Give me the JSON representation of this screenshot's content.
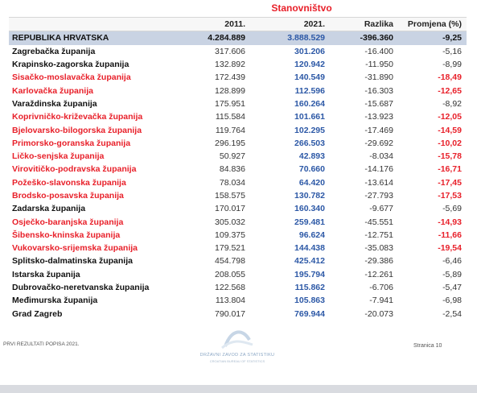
{
  "title": "Stanovništvo",
  "headers": {
    "y2011": "2011.",
    "y2021": "2021.",
    "diff": "Razlika",
    "pct": "Promjena (%)"
  },
  "total": {
    "name": "REPUBLIKA HRVATSKA",
    "y2011": "4.284.889",
    "y2021": "3.888.529",
    "diff": "-396.360",
    "pct": "-9,25"
  },
  "rows": [
    {
      "name": "Zagrebačka županija",
      "y2011": "317.606",
      "y2021": "301.206",
      "diff": "-16.400",
      "pct": "-5,16",
      "highlight": false
    },
    {
      "name": "Krapinsko-zagorska županija",
      "y2011": "132.892",
      "y2021": "120.942",
      "diff": "-11.950",
      "pct": "-8,99",
      "highlight": false
    },
    {
      "name": "Sisačko-moslavačka županija",
      "y2011": "172.439",
      "y2021": "140.549",
      "diff": "-31.890",
      "pct": "-18,49",
      "highlight": true
    },
    {
      "name": "Karlovačka županija",
      "y2011": "128.899",
      "y2021": "112.596",
      "diff": "-16.303",
      "pct": "-12,65",
      "highlight": true
    },
    {
      "name": "Varaždinska županija",
      "y2011": "175.951",
      "y2021": "160.264",
      "diff": "-15.687",
      "pct": "-8,92",
      "highlight": false
    },
    {
      "name": "Koprivničko-križevačka županija",
      "y2011": "115.584",
      "y2021": "101.661",
      "diff": "-13.923",
      "pct": "-12,05",
      "highlight": true
    },
    {
      "name": "Bjelovarsko-bilogorska županija",
      "y2011": "119.764",
      "y2021": "102.295",
      "diff": "-17.469",
      "pct": "-14,59",
      "highlight": true
    },
    {
      "name": "Primorsko-goranska županija",
      "y2011": "296.195",
      "y2021": "266.503",
      "diff": "-29.692",
      "pct": "-10,02",
      "highlight": true
    },
    {
      "name": "Ličko-senjska županija",
      "y2011": "50.927",
      "y2021": "42.893",
      "diff": "-8.034",
      "pct": "-15,78",
      "highlight": true
    },
    {
      "name": "Virovitičko-podravska županija",
      "y2011": "84.836",
      "y2021": "70.660",
      "diff": "-14.176",
      "pct": "-16,71",
      "highlight": true
    },
    {
      "name": "Požeško-slavonska županija",
      "y2011": "78.034",
      "y2021": "64.420",
      "diff": "-13.614",
      "pct": "-17,45",
      "highlight": true
    },
    {
      "name": "Brodsko-posavska županija",
      "y2011": "158.575",
      "y2021": "130.782",
      "diff": "-27.793",
      "pct": "-17,53",
      "highlight": true
    },
    {
      "name": "Zadarska županija",
      "y2011": "170.017",
      "y2021": "160.340",
      "diff": "-9.677",
      "pct": "-5,69",
      "highlight": false
    },
    {
      "name": "Osječko-baranjska županija",
      "y2011": "305.032",
      "y2021": "259.481",
      "diff": "-45.551",
      "pct": "-14,93",
      "highlight": true
    },
    {
      "name": "Šibensko-kninska županija",
      "y2011": "109.375",
      "y2021": "96.624",
      "diff": "-12.751",
      "pct": "-11,66",
      "highlight": true
    },
    {
      "name": "Vukovarsko-srijemska županija",
      "y2011": "179.521",
      "y2021": "144.438",
      "diff": "-35.083",
      "pct": "-19,54",
      "highlight": true
    },
    {
      "name": "Splitsko-dalmatinska županija",
      "y2011": "454.798",
      "y2021": "425.412",
      "diff": "-29.386",
      "pct": "-6,46",
      "highlight": false
    },
    {
      "name": "Istarska županija",
      "y2011": "208.055",
      "y2021": "195.794",
      "diff": "-12.261",
      "pct": "-5,89",
      "highlight": false
    },
    {
      "name": "Dubrovačko-neretvanska županija",
      "y2011": "122.568",
      "y2021": "115.862",
      "diff": "-6.706",
      "pct": "-5,47",
      "highlight": false
    },
    {
      "name": "Međimurska županija",
      "y2011": "113.804",
      "y2021": "105.863",
      "diff": "-7.941",
      "pct": "-6,98",
      "highlight": false
    },
    {
      "name": "Grad Zagreb",
      "y2011": "790.017",
      "y2021": "769.944",
      "diff": "-20.073",
      "pct": "-2,54",
      "highlight": false
    }
  ],
  "footer": {
    "left": "PRVI REZULTATI POPISA 2021.",
    "right": "Stranica 10"
  },
  "logo": {
    "line1": "DRŽAVNI ZAVOD ZA STATISTIKU",
    "line2": "CROATIAN BUREAU OF STATISTICS"
  },
  "colors": {
    "accent_red": "#e8202a",
    "value_blue": "#2c58a6",
    "total_row_bg": "#c9d3e3"
  }
}
